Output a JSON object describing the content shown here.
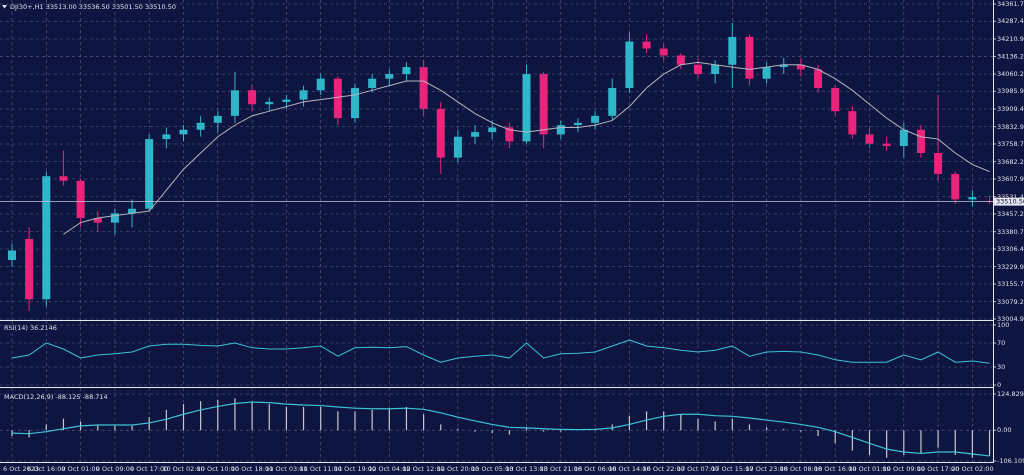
{
  "chart_data": [
    {
      "type": "candlestick",
      "title": "DJI30+,H1  33513.00 33536.50 33501.50 33510.50",
      "categories": [
        "6 Oct 2023",
        null,
        "6 Oct 16:00",
        null,
        "9 Oct 01:00",
        null,
        "9 Oct 09:00",
        null,
        "9 Oct 17:00",
        null,
        "10 Oct 02:00",
        null,
        "10 Oct 10:00",
        null,
        "10 Oct 18:00",
        null,
        "11 Oct 03:00",
        null,
        "11 Oct 11:00",
        null,
        "11 Oct 19:00",
        null,
        "12 Oct 04:00",
        null,
        "12 Oct 12:00",
        null,
        "12 Oct 20:00",
        null,
        "13 Oct 05:00",
        null,
        "13 Oct 13:00",
        null,
        "13 Oct 21:00",
        null,
        "16 Oct 06:00",
        null,
        "16 Oct 14:00",
        null,
        "16 Oct 22:00",
        null,
        "17 Oct 07:00",
        null,
        "17 Oct 15:00",
        null,
        "17 Oct 23:00",
        null,
        "18 Oct 08:00",
        null,
        "18 Oct 16:00",
        null,
        "19 Oct 01:00",
        null,
        "19 Oct 09:00",
        null,
        "19 Oct 17:00",
        null,
        "20 Oct 02:00",
        null
      ],
      "open": [
        33259,
        33350,
        33090,
        33620,
        33600,
        33440,
        33420,
        33460,
        33480,
        33780,
        33800,
        33820,
        33850,
        33880,
        33990,
        33930,
        33940,
        33950,
        33990,
        34040,
        33870,
        34000,
        34040,
        34060,
        34090,
        33910,
        33700,
        33790,
        33810,
        33830,
        33770,
        34060,
        33800,
        33840,
        33850,
        33880,
        34000,
        34200,
        34170,
        34140,
        34100,
        34060,
        34100,
        34220,
        34040,
        34090,
        34100,
        34080,
        34000,
        33900,
        33800,
        33760,
        33750,
        33820,
        33720,
        33630,
        33520,
        33513
      ],
      "high": [
        33330,
        33400,
        33640,
        33730,
        33610,
        33470,
        33480,
        33520,
        33800,
        33830,
        33840,
        33880,
        33900,
        34070,
        34010,
        33960,
        33970,
        34010,
        34060,
        34050,
        34020,
        34060,
        34080,
        34110,
        34120,
        33940,
        33820,
        33840,
        33860,
        33850,
        34100,
        34070,
        33860,
        33870,
        33900,
        34040,
        34240,
        34230,
        34190,
        34150,
        34130,
        34120,
        34280,
        34230,
        34110,
        34130,
        34130,
        34100,
        34010,
        33920,
        33830,
        33790,
        33850,
        33840,
        33970,
        33640,
        33560,
        33536.5
      ],
      "low": [
        33230,
        33040,
        33060,
        33580,
        33400,
        33380,
        33370,
        33400,
        33470,
        33740,
        33770,
        33790,
        33810,
        33850,
        33900,
        33900,
        33910,
        33920,
        33970,
        33840,
        33850,
        33980,
        34010,
        34030,
        33880,
        33630,
        33680,
        33760,
        33780,
        33740,
        33760,
        33740,
        33780,
        33810,
        33820,
        33860,
        33980,
        34150,
        34120,
        34080,
        34040,
        34020,
        34000,
        34010,
        34020,
        34060,
        34050,
        33980,
        33880,
        33780,
        33740,
        33730,
        33700,
        33700,
        33600,
        33500,
        33490,
        33501.5
      ],
      "close": [
        33300,
        33090,
        33620,
        33600,
        33440,
        33420,
        33460,
        33480,
        33780,
        33800,
        33820,
        33850,
        33880,
        33990,
        33930,
        33940,
        33950,
        33990,
        34040,
        33870,
        34000,
        34040,
        34060,
        34090,
        33910,
        33700,
        33790,
        33810,
        33830,
        33770,
        34060,
        33800,
        33840,
        33850,
        33880,
        34000,
        34200,
        34170,
        34140,
        34100,
        34060,
        34100,
        34220,
        34040,
        34090,
        34100,
        34080,
        34000,
        33900,
        33800,
        33760,
        33750,
        33820,
        33720,
        33630,
        33520,
        33530,
        33510.5
      ],
      "up_color": "#2fb6c9",
      "down_color": "#e8257a",
      "moving_average": {
        "color": "#b4b4bc",
        "values": [
          null,
          null,
          null,
          33370,
          33420,
          33440,
          33450,
          33460,
          33470,
          33560,
          33650,
          33720,
          33790,
          33840,
          33880,
          33900,
          33920,
          33940,
          33950,
          33960,
          33970,
          33990,
          34010,
          34030,
          34030,
          33990,
          33940,
          33890,
          33850,
          33820,
          33810,
          33820,
          33830,
          33830,
          33840,
          33860,
          33920,
          34000,
          34060,
          34100,
          34110,
          34100,
          34090,
          34080,
          34090,
          34100,
          34100,
          34080,
          34040,
          33990,
          33930,
          33870,
          33820,
          33790,
          33780,
          33720,
          33670,
          33640
        ]
      },
      "current_price": {
        "value": 33510.5,
        "label": "33510.50"
      },
      "ylim": [
        33004.95,
        34361.7
      ],
      "yticks": [
        {
          "value": 34361.7,
          "label": "34361.70"
        },
        34287.45,
        34210.95,
        {
          "value": 34136.2,
          "label": "34136.20"
        },
        {
          "value": 34060.2,
          "label": "34060.20"
        },
        33985.95,
        33909.45,
        33832.95,
        {
          "value": 33758.7,
          "label": "33758.70"
        },
        {
          "value": 33682.2,
          "label": "33682.20"
        },
        33607.95,
        33531.45,
        {
          "value": 33457.2,
          "label": "33457.20"
        },
        {
          "value": 33380.7,
          "label": "33380.70"
        },
        33306.45,
        33229.95,
        {
          "value": 33155.7,
          "label": "33155.70"
        },
        {
          "value": 33079.2,
          "label": "33079.20"
        },
        33004.95
      ],
      "grid": true
    },
    {
      "type": "line",
      "title": "RSI(14) 36.2146",
      "color": "#3cc3d6",
      "values": [
        45,
        50,
        70,
        60,
        45,
        50,
        52,
        55,
        65,
        68,
        68,
        66,
        65,
        70,
        62,
        60,
        60,
        62,
        65,
        48,
        62,
        63,
        62,
        64,
        50,
        38,
        45,
        48,
        50,
        45,
        70,
        45,
        52,
        53,
        55,
        65,
        75,
        65,
        62,
        58,
        55,
        58,
        65,
        48,
        55,
        56,
        55,
        50,
        42,
        38,
        38,
        38,
        50,
        42,
        55,
        38,
        40,
        36.2146
      ],
      "ylim": [
        0,
        100
      ],
      "yticks": [
        100,
        70,
        30,
        0
      ],
      "grid": true
    },
    {
      "type": "macd",
      "title": "MACD(12,26,9) -88.125 -88.714",
      "histogram": {
        "color": "#c8c8d0",
        "values": [
          -20,
          -25,
          20,
          40,
          30,
          20,
          15,
          15,
          45,
          70,
          90,
          100,
          105,
          110,
          100,
          90,
          80,
          80,
          80,
          65,
          65,
          70,
          75,
          80,
          55,
          20,
          5,
          -5,
          -10,
          -15,
          10,
          -5,
          -5,
          0,
          5,
          20,
          50,
          65,
          65,
          55,
          40,
          30,
          40,
          20,
          10,
          5,
          -5,
          -20,
          -45,
          -70,
          -85,
          -95,
          -85,
          -80,
          -60,
          -85,
          -95,
          -88.125
        ]
      },
      "signal": {
        "color": "#3cc3d6",
        "values": [
          -10,
          -12,
          -5,
          5,
          15,
          18,
          18,
          18,
          25,
          38,
          55,
          70,
          82,
          92,
          97,
          95,
          90,
          87,
          85,
          80,
          76,
          74,
          74,
          76,
          72,
          60,
          45,
          32,
          20,
          10,
          8,
          5,
          3,
          2,
          3,
          8,
          20,
          35,
          48,
          55,
          55,
          50,
          48,
          42,
          35,
          28,
          20,
          10,
          -5,
          -25,
          -45,
          -65,
          -75,
          -80,
          -75,
          -75,
          -82,
          -88.714
        ]
      },
      "ylim": [
        -106.109,
        124.829
      ],
      "yticks": [
        124.829,
        {
          "value": 0,
          "label": "0.00"
        },
        -106.109
      ],
      "grid": true
    }
  ]
}
